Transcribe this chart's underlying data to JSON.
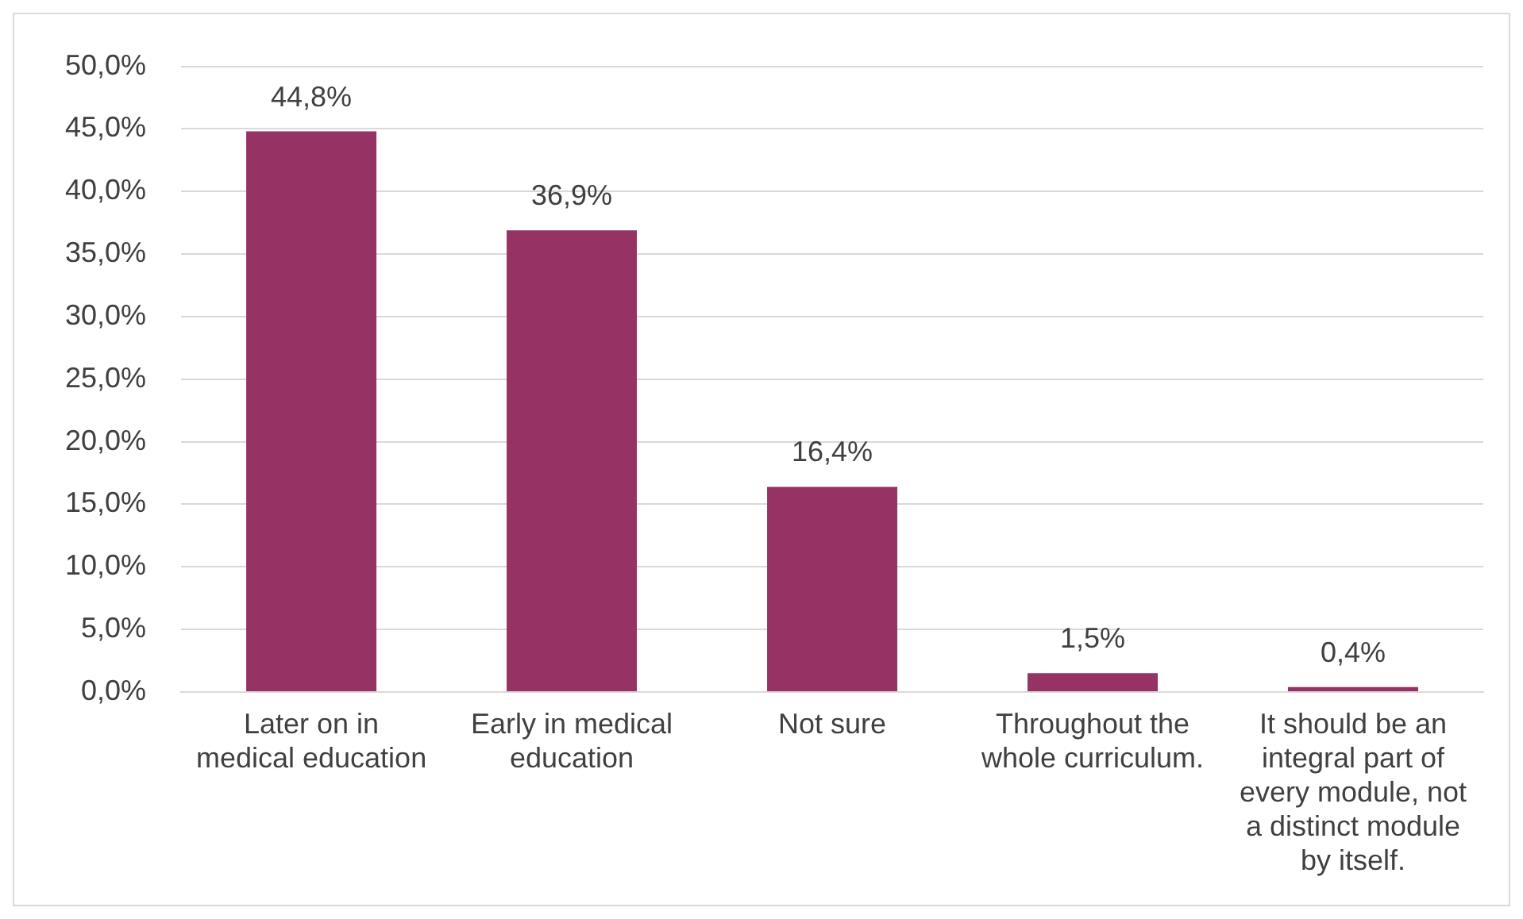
{
  "chart_data": {
    "type": "bar",
    "categories": [
      "Later on in medical education",
      "Early in medical education",
      "Not sure",
      "Throughout the whole curriculum.",
      "It should be an integral part of every module, not a distinct module by itself."
    ],
    "values": [
      44.8,
      36.9,
      16.4,
      1.5,
      0.4
    ],
    "value_labels": [
      "44,8%",
      "36,9%",
      "16,4%",
      "1,5%",
      "0,4%"
    ],
    "color": "#963264",
    "ylim": [
      0,
      50
    ],
    "yticks": [
      {
        "value": 0,
        "label": "0,0%"
      },
      {
        "value": 5,
        "label": "5,0%"
      },
      {
        "value": 10,
        "label": "10,0%"
      },
      {
        "value": 15,
        "label": "15,0%"
      },
      {
        "value": 20,
        "label": "20,0%"
      },
      {
        "value": 25,
        "label": "25,0%"
      },
      {
        "value": 30,
        "label": "30,0%"
      },
      {
        "value": 35,
        "label": "35,0%"
      },
      {
        "value": 40,
        "label": "40,0%"
      },
      {
        "value": 45,
        "label": "45,0%"
      },
      {
        "value": 50,
        "label": "50,0%"
      }
    ],
    "grid": "y"
  }
}
